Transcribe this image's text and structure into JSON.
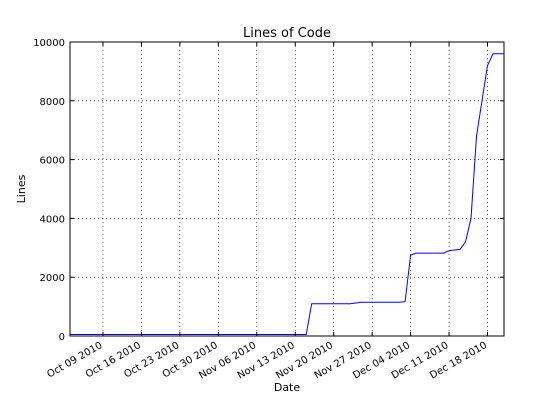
{
  "chart_data": {
    "type": "line",
    "title": "Lines of Code",
    "xlabel": "Date",
    "ylabel": "Lines",
    "x_axis": "date",
    "xlim": [
      "2010-10-03",
      "2010-12-21"
    ],
    "ylim": [
      0,
      10000
    ],
    "grid": true,
    "line_color": "#0000ff",
    "y_ticks": [
      0,
      2000,
      4000,
      6000,
      8000,
      10000
    ],
    "y_tick_labels": [
      "0",
      "2000",
      "4000",
      "6000",
      "8000",
      "10000"
    ],
    "x_ticks": [
      "2010-10-09",
      "2010-10-16",
      "2010-10-23",
      "2010-10-30",
      "2010-11-06",
      "2010-11-13",
      "2010-11-20",
      "2010-11-27",
      "2010-12-04",
      "2010-12-11",
      "2010-12-18"
    ],
    "x_tick_labels": [
      "Oct 09 2010",
      "Oct 16 2010",
      "Oct 23 2010",
      "Oct 30 2010",
      "Nov 06 2010",
      "Nov 13 2010",
      "Nov 20 2010",
      "Nov 27 2010",
      "Dec 04 2010",
      "Dec 11 2010",
      "Dec 18 2010"
    ],
    "series": [
      {
        "points": [
          [
            "2010-10-03",
            50
          ],
          [
            "2010-11-15",
            50
          ],
          [
            "2010-11-16",
            1100
          ],
          [
            "2010-11-23",
            1100
          ],
          [
            "2010-11-25",
            1150
          ],
          [
            "2010-12-02",
            1150
          ],
          [
            "2010-12-03",
            1170
          ],
          [
            "2010-12-04",
            2750
          ],
          [
            "2010-12-05",
            2820
          ],
          [
            "2010-12-10",
            2820
          ],
          [
            "2010-12-11",
            2900
          ],
          [
            "2010-12-13",
            2950
          ],
          [
            "2010-12-14",
            3200
          ],
          [
            "2010-12-15",
            4000
          ],
          [
            "2010-12-16",
            6800
          ],
          [
            "2010-12-18",
            9200
          ],
          [
            "2010-12-19",
            9600
          ],
          [
            "2010-12-21",
            9600
          ]
        ]
      }
    ]
  }
}
